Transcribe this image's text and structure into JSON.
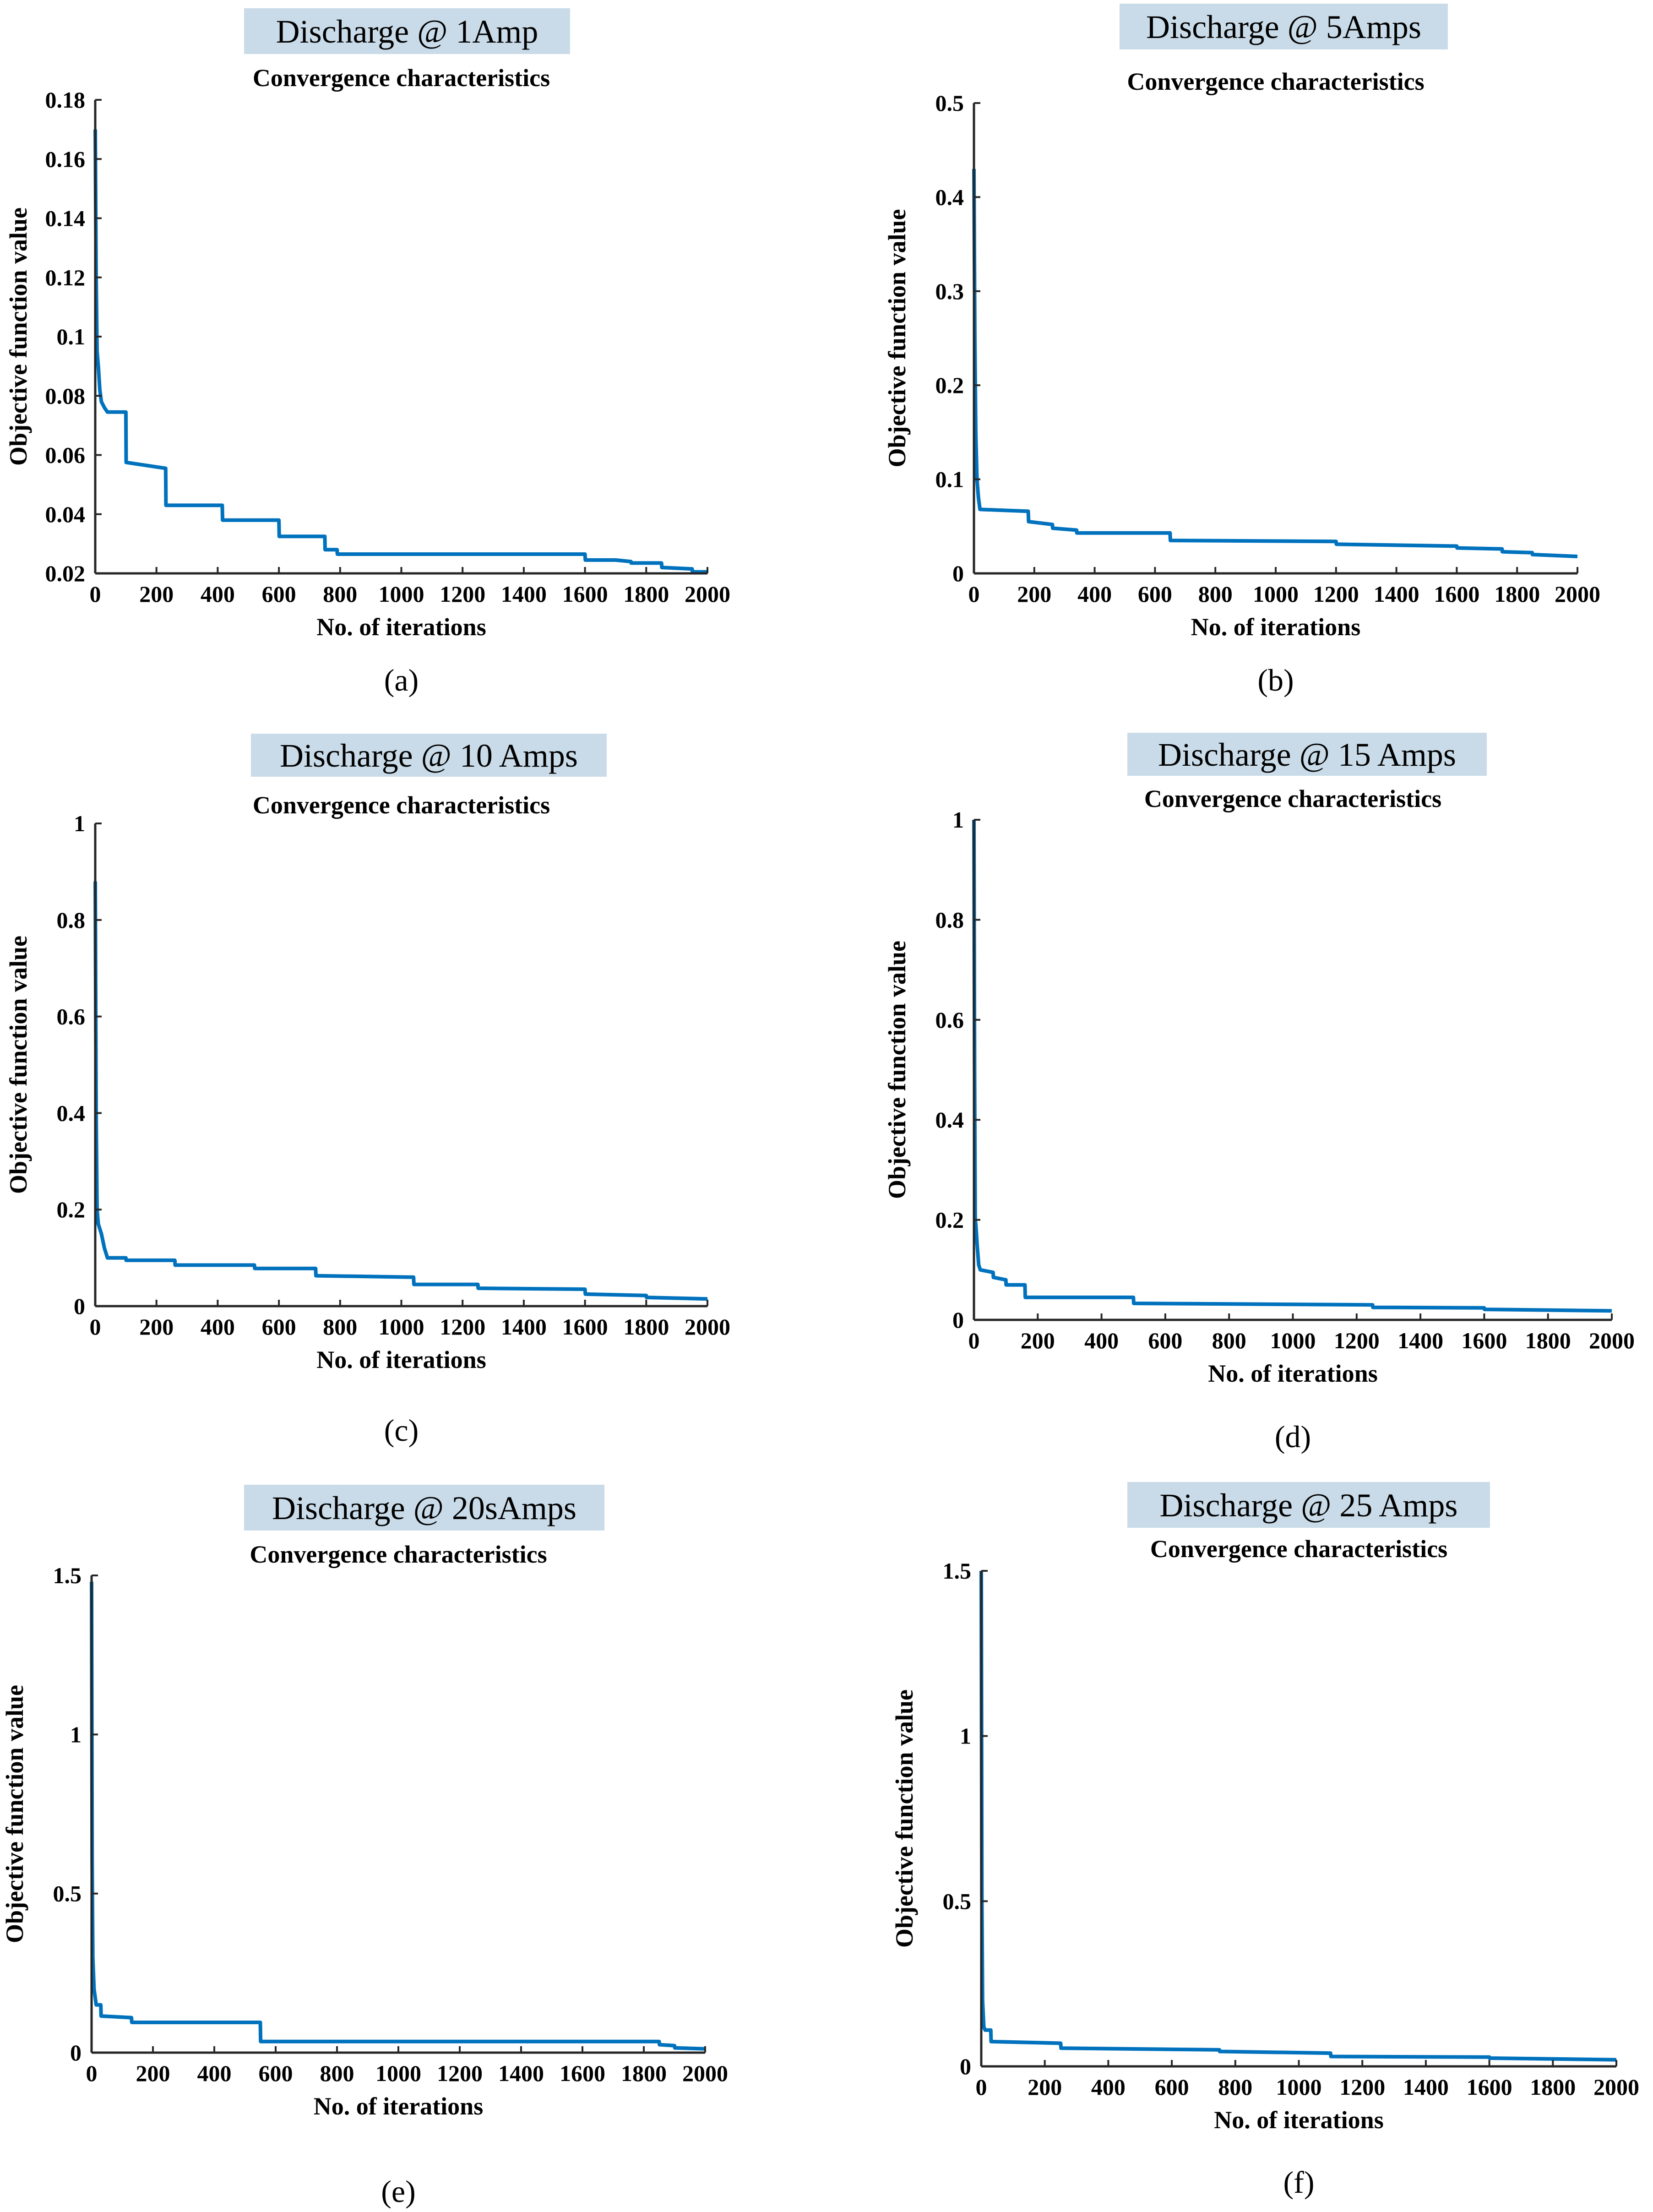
{
  "chart_data": [
    {
      "type": "line",
      "panel_label": "(a)",
      "banner": "Discharge @ 1Amp",
      "title": "Convergence characteristics",
      "xlabel": "No. of iterations",
      "ylabel": "Objective function value",
      "xlim": [
        0,
        2000
      ],
      "ylim": [
        0.02,
        0.18
      ],
      "xticks": [
        "0",
        "200",
        "400",
        "600",
        "800",
        "1000",
        "1200",
        "1400",
        "1600",
        "1800",
        "2000"
      ],
      "yticks": [
        "0.02",
        "0.04",
        "0.06",
        "0.08",
        "0.1",
        "0.12",
        "0.14",
        "0.16",
        "0.18"
      ],
      "line_color": "#0072BD",
      "series": [
        {
          "x": [
            0,
            3,
            6,
            10,
            15,
            20,
            30,
            40,
            100,
            101,
            230,
            231,
            415,
            416,
            600,
            601,
            750,
            751,
            790,
            791,
            1550,
            1600,
            1601,
            1700,
            1750,
            1751,
            1850,
            1851,
            1950,
            1951,
            2000
          ],
          "y": [
            0.17,
            0.12,
            0.095,
            0.09,
            0.082,
            0.078,
            0.076,
            0.0745,
            0.0745,
            0.0575,
            0.0555,
            0.043,
            0.043,
            0.038,
            0.038,
            0.0325,
            0.0325,
            0.028,
            0.028,
            0.0265,
            0.0265,
            0.0265,
            0.0245,
            0.0245,
            0.024,
            0.0235,
            0.0235,
            0.022,
            0.0215,
            0.0205,
            0.0205
          ]
        }
      ]
    },
    {
      "type": "line",
      "panel_label": "(b)",
      "banner": "Discharge @ 5Amps",
      "title": "Convergence characteristics",
      "xlabel": "No. of iterations",
      "ylabel": "Objective function value",
      "xlim": [
        0,
        2000
      ],
      "ylim": [
        0,
        0.5
      ],
      "xticks": [
        "0",
        "200",
        "400",
        "600",
        "800",
        "1000",
        "1200",
        "1400",
        "1600",
        "1800",
        "2000"
      ],
      "yticks": [
        "0",
        "0.1",
        "0.2",
        "0.3",
        "0.4",
        "0.5"
      ],
      "line_color": "#0072BD",
      "series": [
        {
          "x": [
            0,
            3,
            6,
            10,
            15,
            20,
            180,
            181,
            260,
            261,
            340,
            341,
            650,
            651,
            1200,
            1201,
            1600,
            1601,
            1750,
            1751,
            1850,
            1851,
            2000
          ],
          "y": [
            0.43,
            0.25,
            0.15,
            0.1,
            0.08,
            0.068,
            0.066,
            0.055,
            0.052,
            0.048,
            0.046,
            0.043,
            0.043,
            0.035,
            0.034,
            0.031,
            0.029,
            0.027,
            0.026,
            0.023,
            0.022,
            0.02,
            0.018
          ]
        }
      ]
    },
    {
      "type": "line",
      "panel_label": "(c)",
      "banner": "Discharge @ 10 Amps",
      "title": "Convergence characteristics",
      "xlabel": "No. of iterations",
      "ylabel": "Objective function value",
      "xlim": [
        0,
        2000
      ],
      "ylim": [
        0,
        1
      ],
      "xticks": [
        "0",
        "200",
        "400",
        "600",
        "800",
        "1000",
        "1200",
        "1400",
        "1600",
        "1800",
        "2000"
      ],
      "yticks": [
        "0",
        "0.2",
        "0.4",
        "0.6",
        "0.8",
        "1"
      ],
      "line_color": "#0072BD",
      "series": [
        {
          "x": [
            0,
            3,
            6,
            10,
            20,
            30,
            40,
            100,
            101,
            260,
            261,
            520,
            521,
            720,
            721,
            1040,
            1041,
            1250,
            1251,
            1600,
            1601,
            1800,
            1801,
            2000
          ],
          "y": [
            0.88,
            0.4,
            0.2,
            0.17,
            0.15,
            0.12,
            0.1,
            0.1,
            0.095,
            0.095,
            0.085,
            0.085,
            0.078,
            0.078,
            0.063,
            0.06,
            0.045,
            0.045,
            0.037,
            0.035,
            0.025,
            0.022,
            0.018,
            0.015
          ]
        }
      ]
    },
    {
      "type": "line",
      "panel_label": "(d)",
      "banner": "Discharge @ 15 Amps",
      "title": "Convergence characteristics",
      "xlabel": "No. of iterations",
      "ylabel": "Objective function value",
      "xlim": [
        0,
        2000
      ],
      "ylim": [
        0,
        1
      ],
      "xticks": [
        "0",
        "200",
        "400",
        "600",
        "800",
        "1000",
        "1200",
        "1400",
        "1600",
        "1800",
        "2000"
      ],
      "yticks": [
        "0",
        "0.2",
        "0.4",
        "0.6",
        "0.8",
        "1"
      ],
      "line_color": "#0072BD",
      "series": [
        {
          "x": [
            0,
            2,
            4,
            6,
            10,
            15,
            20,
            60,
            61,
            100,
            101,
            160,
            161,
            500,
            501,
            1250,
            1251,
            1600,
            1601,
            2000
          ],
          "y": [
            1.0,
            0.5,
            0.2,
            0.19,
            0.15,
            0.11,
            0.1,
            0.095,
            0.085,
            0.08,
            0.07,
            0.07,
            0.045,
            0.045,
            0.033,
            0.03,
            0.025,
            0.024,
            0.021,
            0.018
          ]
        }
      ]
    },
    {
      "type": "line",
      "panel_label": "(e)",
      "banner": "Discharge @ 20sAmps",
      "title": "Convergence characteristics",
      "xlabel": "No. of iterations",
      "ylabel": "Objective function value",
      "xlim": [
        0,
        2000
      ],
      "ylim": [
        0,
        1.5
      ],
      "xticks": [
        "0",
        "200",
        "400",
        "600",
        "800",
        "1000",
        "1200",
        "1400",
        "1600",
        "1800",
        "2000"
      ],
      "yticks": [
        "0",
        "0.5",
        "1",
        "1.5"
      ],
      "line_color": "#0072BD",
      "series": [
        {
          "x": [
            0,
            2,
            4,
            8,
            15,
            30,
            31,
            130,
            131,
            550,
            551,
            1850,
            1851,
            1900,
            1901,
            2000
          ],
          "y": [
            1.48,
            0.6,
            0.3,
            0.2,
            0.15,
            0.15,
            0.115,
            0.11,
            0.095,
            0.095,
            0.035,
            0.035,
            0.025,
            0.022,
            0.015,
            0.012
          ]
        }
      ]
    },
    {
      "type": "line",
      "panel_label": "(f)",
      "banner": "Discharge @ 25 Amps",
      "title": "Convergence characteristics",
      "xlabel": "No. of iterations",
      "ylabel": "Objective function value",
      "xlim": [
        0,
        2000
      ],
      "ylim": [
        0,
        1.5
      ],
      "xticks": [
        "0",
        "200",
        "400",
        "600",
        "800",
        "1000",
        "1200",
        "1400",
        "1600",
        "1800",
        "2000"
      ],
      "yticks": [
        "0",
        "0.5",
        "1",
        "1.5"
      ],
      "line_color": "#0072BD",
      "series": [
        {
          "x": [
            0,
            2,
            4,
            8,
            12,
            30,
            31,
            250,
            251,
            750,
            751,
            1100,
            1101,
            1600,
            1601,
            2000
          ],
          "y": [
            1.5,
            0.5,
            0.2,
            0.12,
            0.11,
            0.11,
            0.075,
            0.07,
            0.055,
            0.05,
            0.045,
            0.04,
            0.03,
            0.028,
            0.025,
            0.02
          ]
        }
      ]
    }
  ]
}
